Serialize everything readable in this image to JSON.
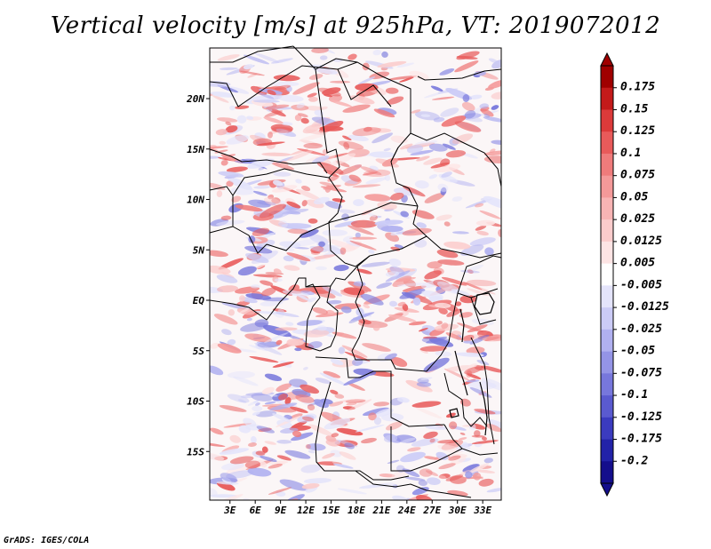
{
  "title": "Vertical velocity [m/s] at 925hPa, VT: 2019072012",
  "credit": "GrADS: IGES/COLA",
  "lat_labels": [
    "20N",
    "15N",
    "10N",
    "5N",
    "EQ",
    "5S",
    "10S",
    "15S"
  ],
  "lat_values": [
    20,
    15,
    10,
    5,
    0,
    -5,
    -10,
    -15
  ],
  "lon_labels": [
    "3E",
    "6E",
    "9E",
    "12E",
    "15E",
    "18E",
    "21E",
    "24E",
    "27E",
    "30E",
    "33E"
  ],
  "lon_values": [
    3,
    6,
    9,
    12,
    15,
    18,
    21,
    24,
    27,
    30,
    33
  ],
  "colorbar": {
    "labels": [
      "0.175",
      "0.15",
      "0.125",
      "0.1",
      "0.075",
      "0.05",
      "0.025",
      "0.0125",
      "0.005",
      "-0.005",
      "-0.0125",
      "-0.025",
      "-0.05",
      "-0.075",
      "-0.1",
      "-0.125",
      "-0.175",
      "-0.2"
    ],
    "colors": [
      "#a00000",
      "#c41a1a",
      "#dc3a3a",
      "#e85a5a",
      "#ef7b7b",
      "#f49999",
      "#f8b4b4",
      "#fbcccc",
      "#fde4e4",
      "#ffffff",
      "#e4e4fb",
      "#cbcbf6",
      "#b0b0f0",
      "#9494e6",
      "#7777dc",
      "#5a5acf",
      "#3b3bbf",
      "#2222a8",
      "#140e8c"
    ]
  }
}
